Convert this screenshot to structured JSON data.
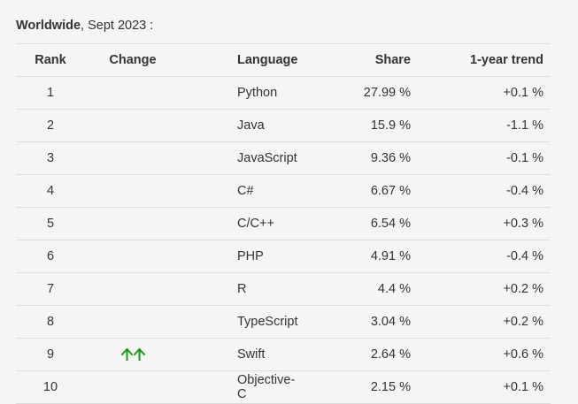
{
  "caption": {
    "bold": "Worldwide",
    "rest": ", Sept 2023 :"
  },
  "headers": {
    "rank": "Rank",
    "change": "Change",
    "language": "Language",
    "share": "Share",
    "trend": "1-year trend"
  },
  "colors": {
    "arrow_up": "#1a9a1a",
    "border": "#dddddd",
    "text": "#333333",
    "background": "#f5f5f5"
  },
  "rows": [
    {
      "rank": "1",
      "language": "Python",
      "share": "27.99 %",
      "trend": "+0.1 %",
      "change_icon": ""
    },
    {
      "rank": "2",
      "language": "Java",
      "share": "15.9 %",
      "trend": "-1.1 %",
      "change_icon": ""
    },
    {
      "rank": "3",
      "language": "JavaScript",
      "share": "9.36 %",
      "trend": "-0.1 %",
      "change_icon": ""
    },
    {
      "rank": "4",
      "language": "C#",
      "share": "6.67 %",
      "trend": "-0.4 %",
      "change_icon": ""
    },
    {
      "rank": "5",
      "language": "C/C++",
      "share": "6.54 %",
      "trend": "+0.3 %",
      "change_icon": ""
    },
    {
      "rank": "6",
      "language": "PHP",
      "share": "4.91 %",
      "trend": "-0.4 %",
      "change_icon": ""
    },
    {
      "rank": "7",
      "language": "R",
      "share": "4.4 %",
      "trend": "+0.2 %",
      "change_icon": ""
    },
    {
      "rank": "8",
      "language": "TypeScript",
      "share": "3.04 %",
      "trend": "+0.2 %",
      "change_icon": ""
    },
    {
      "rank": "9",
      "language": "Swift",
      "share": "2.64 %",
      "trend": "+0.6 %",
      "change_icon": "double-up-arrow-icon"
    },
    {
      "rank": "10",
      "language": "Objective-C",
      "share": "2.15 %",
      "trend": "+0.1 %",
      "change_icon": ""
    }
  ]
}
